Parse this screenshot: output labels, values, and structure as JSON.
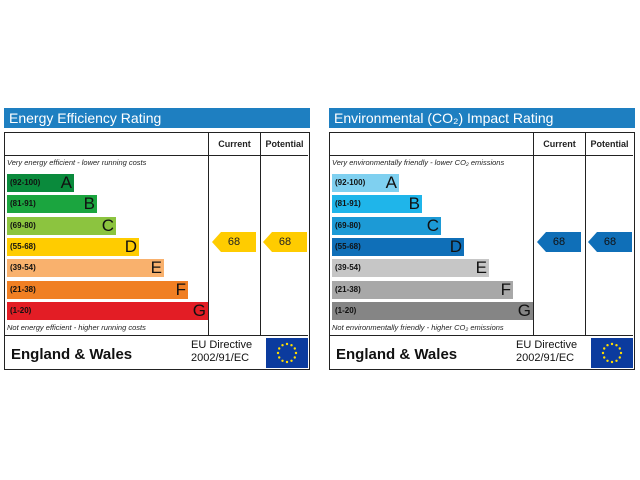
{
  "energy": {
    "title": "Energy Efficiency Rating",
    "col_current": "Current",
    "col_potential": "Potential",
    "top_note": "Very energy efficient - lower running costs",
    "bottom_note": "Not energy efficient - higher running costs",
    "bands": [
      {
        "range": "(92-100)",
        "letter": "A",
        "color": "#0a8a3c"
      },
      {
        "range": "(81-91)",
        "letter": "B",
        "color": "#1ba53f"
      },
      {
        "range": "(69-80)",
        "letter": "C",
        "color": "#8cc43f"
      },
      {
        "range": "(55-68)",
        "letter": "D",
        "color": "#ffcc00"
      },
      {
        "range": "(39-54)",
        "letter": "E",
        "color": "#f9b16d"
      },
      {
        "range": "(21-38)",
        "letter": "F",
        "color": "#f07f23"
      },
      {
        "range": "(1-20)",
        "letter": "G",
        "color": "#e31d25"
      }
    ],
    "current": "68",
    "potential": "68",
    "arrow_color": "#ffcc00",
    "footer": "England & Wales",
    "directive_line1": "EU Directive",
    "directive_line2": "2002/91/EC"
  },
  "environment": {
    "title": "Environmental (CO₂) Impact Rating",
    "col_current": "Current",
    "col_potential": "Potential",
    "top_note": "Very environmentally friendly - lower CO₂ emissions",
    "bottom_note": "Not environmentally friendly - higher CO₂ emissions",
    "bands": [
      {
        "range": "(92-100)",
        "letter": "A",
        "color": "#7fd0f0"
      },
      {
        "range": "(81-91)",
        "letter": "B",
        "color": "#1fb5ea"
      },
      {
        "range": "(69-80)",
        "letter": "C",
        "color": "#1c9ad6"
      },
      {
        "range": "(55-68)",
        "letter": "D",
        "color": "#0f6fb8"
      },
      {
        "range": "(39-54)",
        "letter": "E",
        "color": "#c6c6c6"
      },
      {
        "range": "(21-38)",
        "letter": "F",
        "color": "#a8a8a8"
      },
      {
        "range": "(1-20)",
        "letter": "G",
        "color": "#858585"
      }
    ],
    "current": "68",
    "potential": "68",
    "arrow_color": "#0f6fb8",
    "footer": "England & Wales",
    "directive_line1": "EU Directive",
    "directive_line2": "2002/91/EC"
  }
}
